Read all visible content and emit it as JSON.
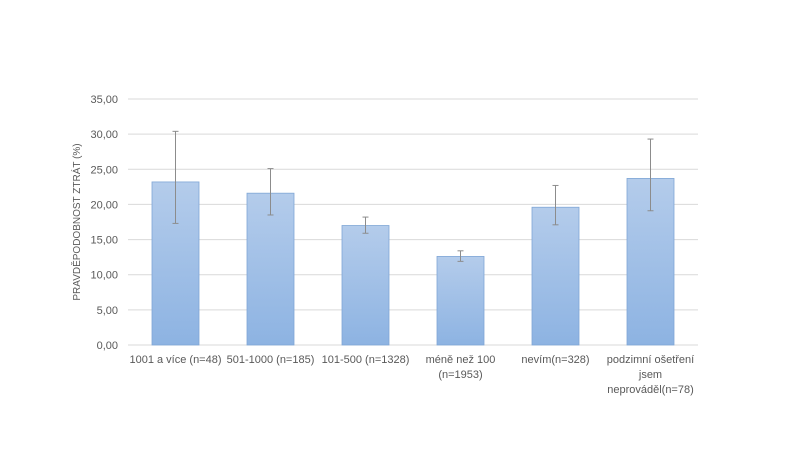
{
  "chart_data": {
    "type": "bar",
    "title": "",
    "xlabel": "",
    "ylabel": "PRAVDĚPODOBNOST ZTRÁT (%)",
    "ylim": [
      0,
      35
    ],
    "yticks": [
      "0,00",
      "5,00",
      "10,00",
      "15,00",
      "20,00",
      "25,00",
      "30,00",
      "35,00"
    ],
    "ytick_values": [
      0,
      5,
      10,
      15,
      20,
      25,
      30,
      35
    ],
    "grid": true,
    "legend": "none",
    "categories": [
      [
        "1001 a více (n=48)"
      ],
      [
        "501-1000 (n=185)"
      ],
      [
        "101-500 (n=1328)"
      ],
      [
        "méně než 100",
        "(n=1953)"
      ],
      [
        "nevím(n=328)"
      ],
      [
        "podzimní ošetření",
        "jsem",
        "neprováděl(n=78)"
      ]
    ],
    "values": [
      23.2,
      21.6,
      17.0,
      12.6,
      19.6,
      23.7
    ],
    "error_low": [
      17.3,
      18.5,
      15.9,
      11.9,
      17.1,
      19.1
    ],
    "error_high": [
      30.4,
      25.1,
      18.2,
      13.4,
      22.7,
      29.3
    ],
    "colors": {
      "bar_top": "#b4cceb",
      "bar_bottom": "#8db3e2",
      "bar_border": "#7fa6d6",
      "error_bar": "#8c8c8c",
      "grid": "#d9d9d9",
      "text": "#595959"
    }
  }
}
